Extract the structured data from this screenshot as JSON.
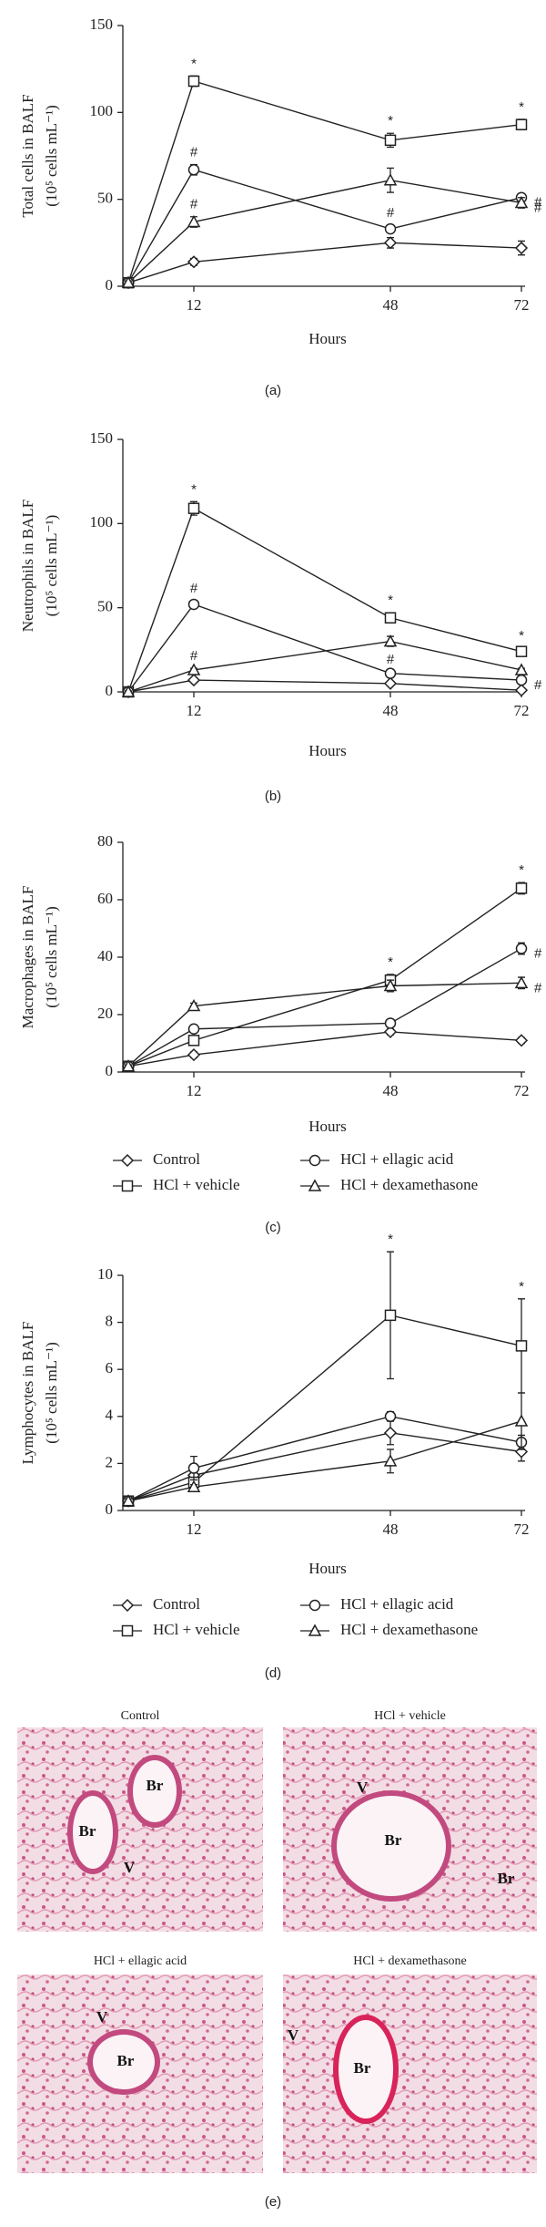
{
  "chart_data": [
    {
      "type": "line",
      "label": "(a)",
      "xlabel": "Hours",
      "ylabel": [
        "Total cells in BALF",
        "(10⁵ cells mL⁻¹)"
      ],
      "x": [
        0,
        12,
        48,
        72
      ],
      "xlim": [
        -1,
        74
      ],
      "xticks": [
        12,
        48,
        72
      ],
      "ylim": [
        0,
        150
      ],
      "yticks": [
        0,
        50,
        100,
        150
      ],
      "legend": false,
      "series": [
        {
          "name": "Control",
          "marker": "diamond",
          "color": "#222",
          "values": [
            2,
            14,
            25,
            22
          ],
          "errors": [
            1,
            2,
            3,
            4
          ],
          "significance": [
            null,
            null,
            null,
            null
          ]
        },
        {
          "name": "HCl + vehicle",
          "marker": "square",
          "color": "#222",
          "values": [
            2,
            118,
            84,
            93
          ],
          "errors": [
            1,
            3,
            4,
            3
          ],
          "significance": [
            null,
            "*",
            "*",
            "*"
          ]
        },
        {
          "name": "HCl + ellagic acid",
          "marker": "circle",
          "color": "#222",
          "values": [
            2,
            67,
            33,
            51
          ],
          "errors": [
            1,
            3,
            2,
            2
          ],
          "significance": [
            null,
            "#",
            "#",
            "#"
          ]
        },
        {
          "name": "HCl + dexamethasone",
          "marker": "triangle",
          "color": "#222",
          "values": [
            2,
            37,
            61,
            48
          ],
          "errors": [
            1,
            3,
            7,
            3
          ],
          "significance": [
            null,
            "#",
            null,
            "#"
          ]
        }
      ]
    },
    {
      "type": "line",
      "label": "(b)",
      "xlabel": "Hours",
      "ylabel": [
        "Neutrophils in BALF",
        "(10⁵ cells mL⁻¹)"
      ],
      "x": [
        0,
        12,
        48,
        72
      ],
      "xlim": [
        -1,
        74
      ],
      "xticks": [
        12,
        48,
        72
      ],
      "ylim": [
        0,
        150
      ],
      "yticks": [
        0,
        50,
        100,
        150
      ],
      "legend": false,
      "series": [
        {
          "name": "Control",
          "marker": "diamond",
          "color": "#222",
          "values": [
            0,
            7,
            5,
            1
          ],
          "errors": [
            0.5,
            1,
            1,
            0.5
          ],
          "significance": [
            null,
            null,
            null,
            null
          ]
        },
        {
          "name": "HCl + vehicle",
          "marker": "square",
          "color": "#222",
          "values": [
            0,
            109,
            44,
            24
          ],
          "errors": [
            0.5,
            4,
            3,
            2
          ],
          "significance": [
            null,
            "*",
            "*",
            "*"
          ]
        },
        {
          "name": "HCl + ellagic acid",
          "marker": "circle",
          "color": "#222",
          "values": [
            0,
            52,
            11,
            7
          ],
          "errors": [
            0.5,
            2,
            1,
            1
          ],
          "significance": [
            null,
            "#",
            "#",
            "#"
          ]
        },
        {
          "name": "HCl + dexamethasone",
          "marker": "triangle",
          "color": "#222",
          "values": [
            0,
            13,
            30,
            13
          ],
          "errors": [
            0.5,
            1,
            3,
            1
          ],
          "significance": [
            null,
            "#",
            null,
            null
          ]
        }
      ]
    },
    {
      "type": "line",
      "label": "(c)",
      "xlabel": "Hours",
      "ylabel": [
        "Macrophages in BALF",
        "(10⁵ cells mL⁻¹)"
      ],
      "x": [
        0,
        12,
        48,
        72
      ],
      "xlim": [
        -1,
        74
      ],
      "xticks": [
        12,
        48,
        72
      ],
      "ylim": [
        0,
        80
      ],
      "yticks": [
        0,
        20,
        40,
        60,
        80
      ],
      "legend": true,
      "series": [
        {
          "name": "Control",
          "marker": "diamond",
          "color": "#222",
          "values": [
            2,
            6,
            14,
            11
          ],
          "errors": [
            0.5,
            1,
            1,
            1
          ],
          "significance": [
            null,
            null,
            null,
            null
          ]
        },
        {
          "name": "HCl + vehicle",
          "marker": "square",
          "color": "#222",
          "values": [
            2,
            11,
            32,
            64
          ],
          "errors": [
            0.5,
            1,
            2,
            2
          ],
          "significance": [
            null,
            null,
            "*",
            "*"
          ]
        },
        {
          "name": "HCl + ellagic acid",
          "marker": "circle",
          "color": "#222",
          "values": [
            2,
            15,
            17,
            43
          ],
          "errors": [
            0.5,
            1,
            1,
            2
          ],
          "significance": [
            null,
            null,
            null,
            "#"
          ]
        },
        {
          "name": "HCl + dexamethasone",
          "marker": "triangle",
          "color": "#222",
          "values": [
            2,
            23,
            30,
            31
          ],
          "errors": [
            0.5,
            1,
            2,
            2
          ],
          "significance": [
            null,
            null,
            null,
            "#"
          ]
        }
      ]
    },
    {
      "type": "line",
      "label": "(d)",
      "xlabel": "Hours",
      "ylabel": [
        "Lymphocytes in BALF",
        "(10⁵ cells mL⁻¹)"
      ],
      "x": [
        0,
        12,
        48,
        72
      ],
      "xlim": [
        -1,
        74
      ],
      "xticks": [
        12,
        48,
        72
      ],
      "ylim": [
        0,
        10
      ],
      "yticks": [
        0,
        2,
        4,
        6,
        8,
        10
      ],
      "legend": true,
      "series": [
        {
          "name": "Control",
          "marker": "diamond",
          "color": "#222",
          "values": [
            0.4,
            1.5,
            3.3,
            2.5
          ],
          "errors": [
            0.1,
            0.3,
            0.5,
            0.4
          ],
          "significance": [
            null,
            null,
            null,
            null
          ]
        },
        {
          "name": "HCl + vehicle",
          "marker": "square",
          "color": "#222",
          "values": [
            0.4,
            1.2,
            8.3,
            7.0
          ],
          "errors": [
            0.1,
            0.2,
            2.7,
            2.0
          ],
          "significance": [
            null,
            null,
            "*",
            "*"
          ]
        },
        {
          "name": "HCl + ellagic acid",
          "marker": "circle",
          "color": "#222",
          "values": [
            0.4,
            1.8,
            4.0,
            2.9
          ],
          "errors": [
            0.1,
            0.5,
            0.2,
            0.3
          ],
          "significance": [
            null,
            null,
            null,
            null
          ]
        },
        {
          "name": "HCl + dexamethasone",
          "marker": "triangle",
          "color": "#222",
          "values": [
            0.4,
            1.0,
            2.1,
            3.8
          ],
          "errors": [
            0.1,
            0.1,
            0.5,
            1.2
          ],
          "significance": [
            null,
            null,
            null,
            null
          ]
        }
      ]
    }
  ],
  "histology": {
    "label": "(e)",
    "panels": [
      {
        "title": "Control",
        "annotations": [
          "Br",
          "Br",
          "V"
        ]
      },
      {
        "title": "HCl + vehicle",
        "annotations": [
          "V",
          "Br",
          "Br"
        ]
      },
      {
        "title": "HCl + ellagic acid",
        "annotations": [
          "V",
          "Br"
        ]
      },
      {
        "title": "HCl + dexamethasone",
        "annotations": [
          "V",
          "Br"
        ]
      }
    ]
  }
}
